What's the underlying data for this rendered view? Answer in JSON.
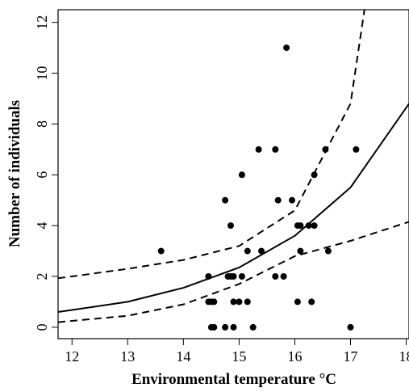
{
  "chart_data": {
    "type": "scatter",
    "xlabel": "Environmental temperature °C",
    "ylabel": "Number of individuals",
    "xlim": [
      11.75,
      18.05
    ],
    "ylim": [
      -0.45,
      12.5
    ],
    "x_ticks": [
      12,
      13,
      14,
      15,
      16,
      17,
      18
    ],
    "y_ticks": [
      0,
      2,
      4,
      6,
      8,
      10,
      12
    ],
    "grid": false,
    "points": [
      {
        "x": 13.6,
        "y": 3
      },
      {
        "x": 14.45,
        "y": 2
      },
      {
        "x": 14.45,
        "y": 1
      },
      {
        "x": 14.5,
        "y": 1
      },
      {
        "x": 14.55,
        "y": 1
      },
      {
        "x": 14.5,
        "y": 0
      },
      {
        "x": 14.55,
        "y": 0
      },
      {
        "x": 14.75,
        "y": 0
      },
      {
        "x": 14.75,
        "y": 5
      },
      {
        "x": 14.8,
        "y": 2
      },
      {
        "x": 14.85,
        "y": 2
      },
      {
        "x": 14.9,
        "y": 2
      },
      {
        "x": 14.85,
        "y": 4
      },
      {
        "x": 14.9,
        "y": 1
      },
      {
        "x": 14.9,
        "y": 0
      },
      {
        "x": 15.0,
        "y": 1
      },
      {
        "x": 15.05,
        "y": 2
      },
      {
        "x": 15.05,
        "y": 6
      },
      {
        "x": 15.15,
        "y": 1
      },
      {
        "x": 15.15,
        "y": 3
      },
      {
        "x": 15.25,
        "y": 0
      },
      {
        "x": 15.35,
        "y": 7
      },
      {
        "x": 15.4,
        "y": 3
      },
      {
        "x": 15.65,
        "y": 2
      },
      {
        "x": 15.65,
        "y": 7
      },
      {
        "x": 15.7,
        "y": 5
      },
      {
        "x": 15.8,
        "y": 2
      },
      {
        "x": 15.85,
        "y": 11
      },
      {
        "x": 15.95,
        "y": 5
      },
      {
        "x": 16.05,
        "y": 1
      },
      {
        "x": 16.05,
        "y": 4
      },
      {
        "x": 16.1,
        "y": 3
      },
      {
        "x": 16.1,
        "y": 4
      },
      {
        "x": 16.25,
        "y": 4
      },
      {
        "x": 16.3,
        "y": 1
      },
      {
        "x": 16.35,
        "y": 4
      },
      {
        "x": 16.35,
        "y": 6
      },
      {
        "x": 16.55,
        "y": 7
      },
      {
        "x": 16.6,
        "y": 3
      },
      {
        "x": 17.0,
        "y": 0
      },
      {
        "x": 17.1,
        "y": 7
      }
    ],
    "series": [
      {
        "style": "solid",
        "x": [
          11.75,
          12,
          13,
          14,
          15,
          16,
          17,
          18.05
        ],
        "values": [
          0.6,
          0.68,
          1.0,
          1.55,
          2.35,
          3.6,
          5.5,
          8.8
        ]
      },
      {
        "style": "dashed",
        "x": [
          11.75,
          12,
          13,
          14,
          15,
          16,
          17,
          17.25
        ],
        "values": [
          1.93,
          2.0,
          2.3,
          2.65,
          3.2,
          4.6,
          8.8,
          12.5
        ]
      },
      {
        "style": "dashed",
        "x": [
          11.75,
          12,
          13,
          14,
          15,
          16,
          17,
          18.05
        ],
        "values": [
          0.2,
          0.25,
          0.45,
          0.9,
          1.7,
          2.8,
          3.4,
          4.15
        ]
      }
    ]
  }
}
